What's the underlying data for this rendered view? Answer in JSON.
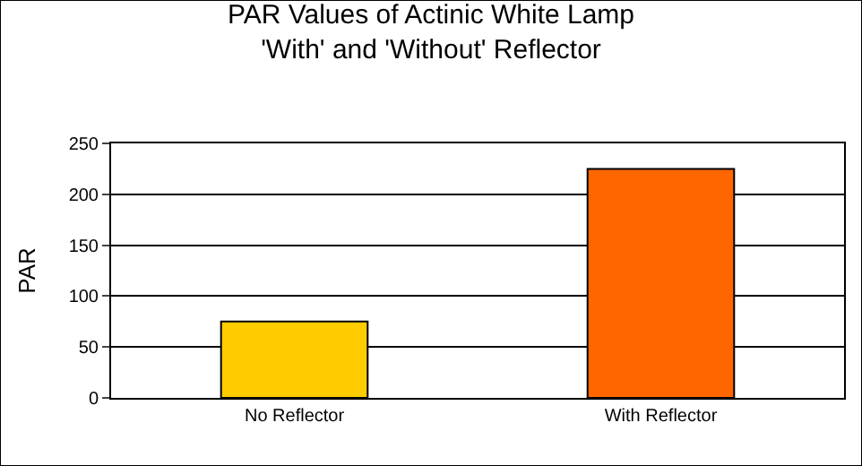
{
  "chart_data": {
    "type": "bar",
    "title": "PAR Values of Actinic White Lamp\n'With' and 'Without' Reflector",
    "ylabel": "PAR",
    "categories": [
      "No Reflector",
      "With Reflector"
    ],
    "values": [
      75,
      225
    ],
    "colors": [
      "#ffcc00",
      "#ff6600"
    ],
    "ylim": [
      0,
      250
    ],
    "yticks": [
      0,
      50,
      100,
      150,
      200,
      250
    ],
    "grid": "y"
  }
}
